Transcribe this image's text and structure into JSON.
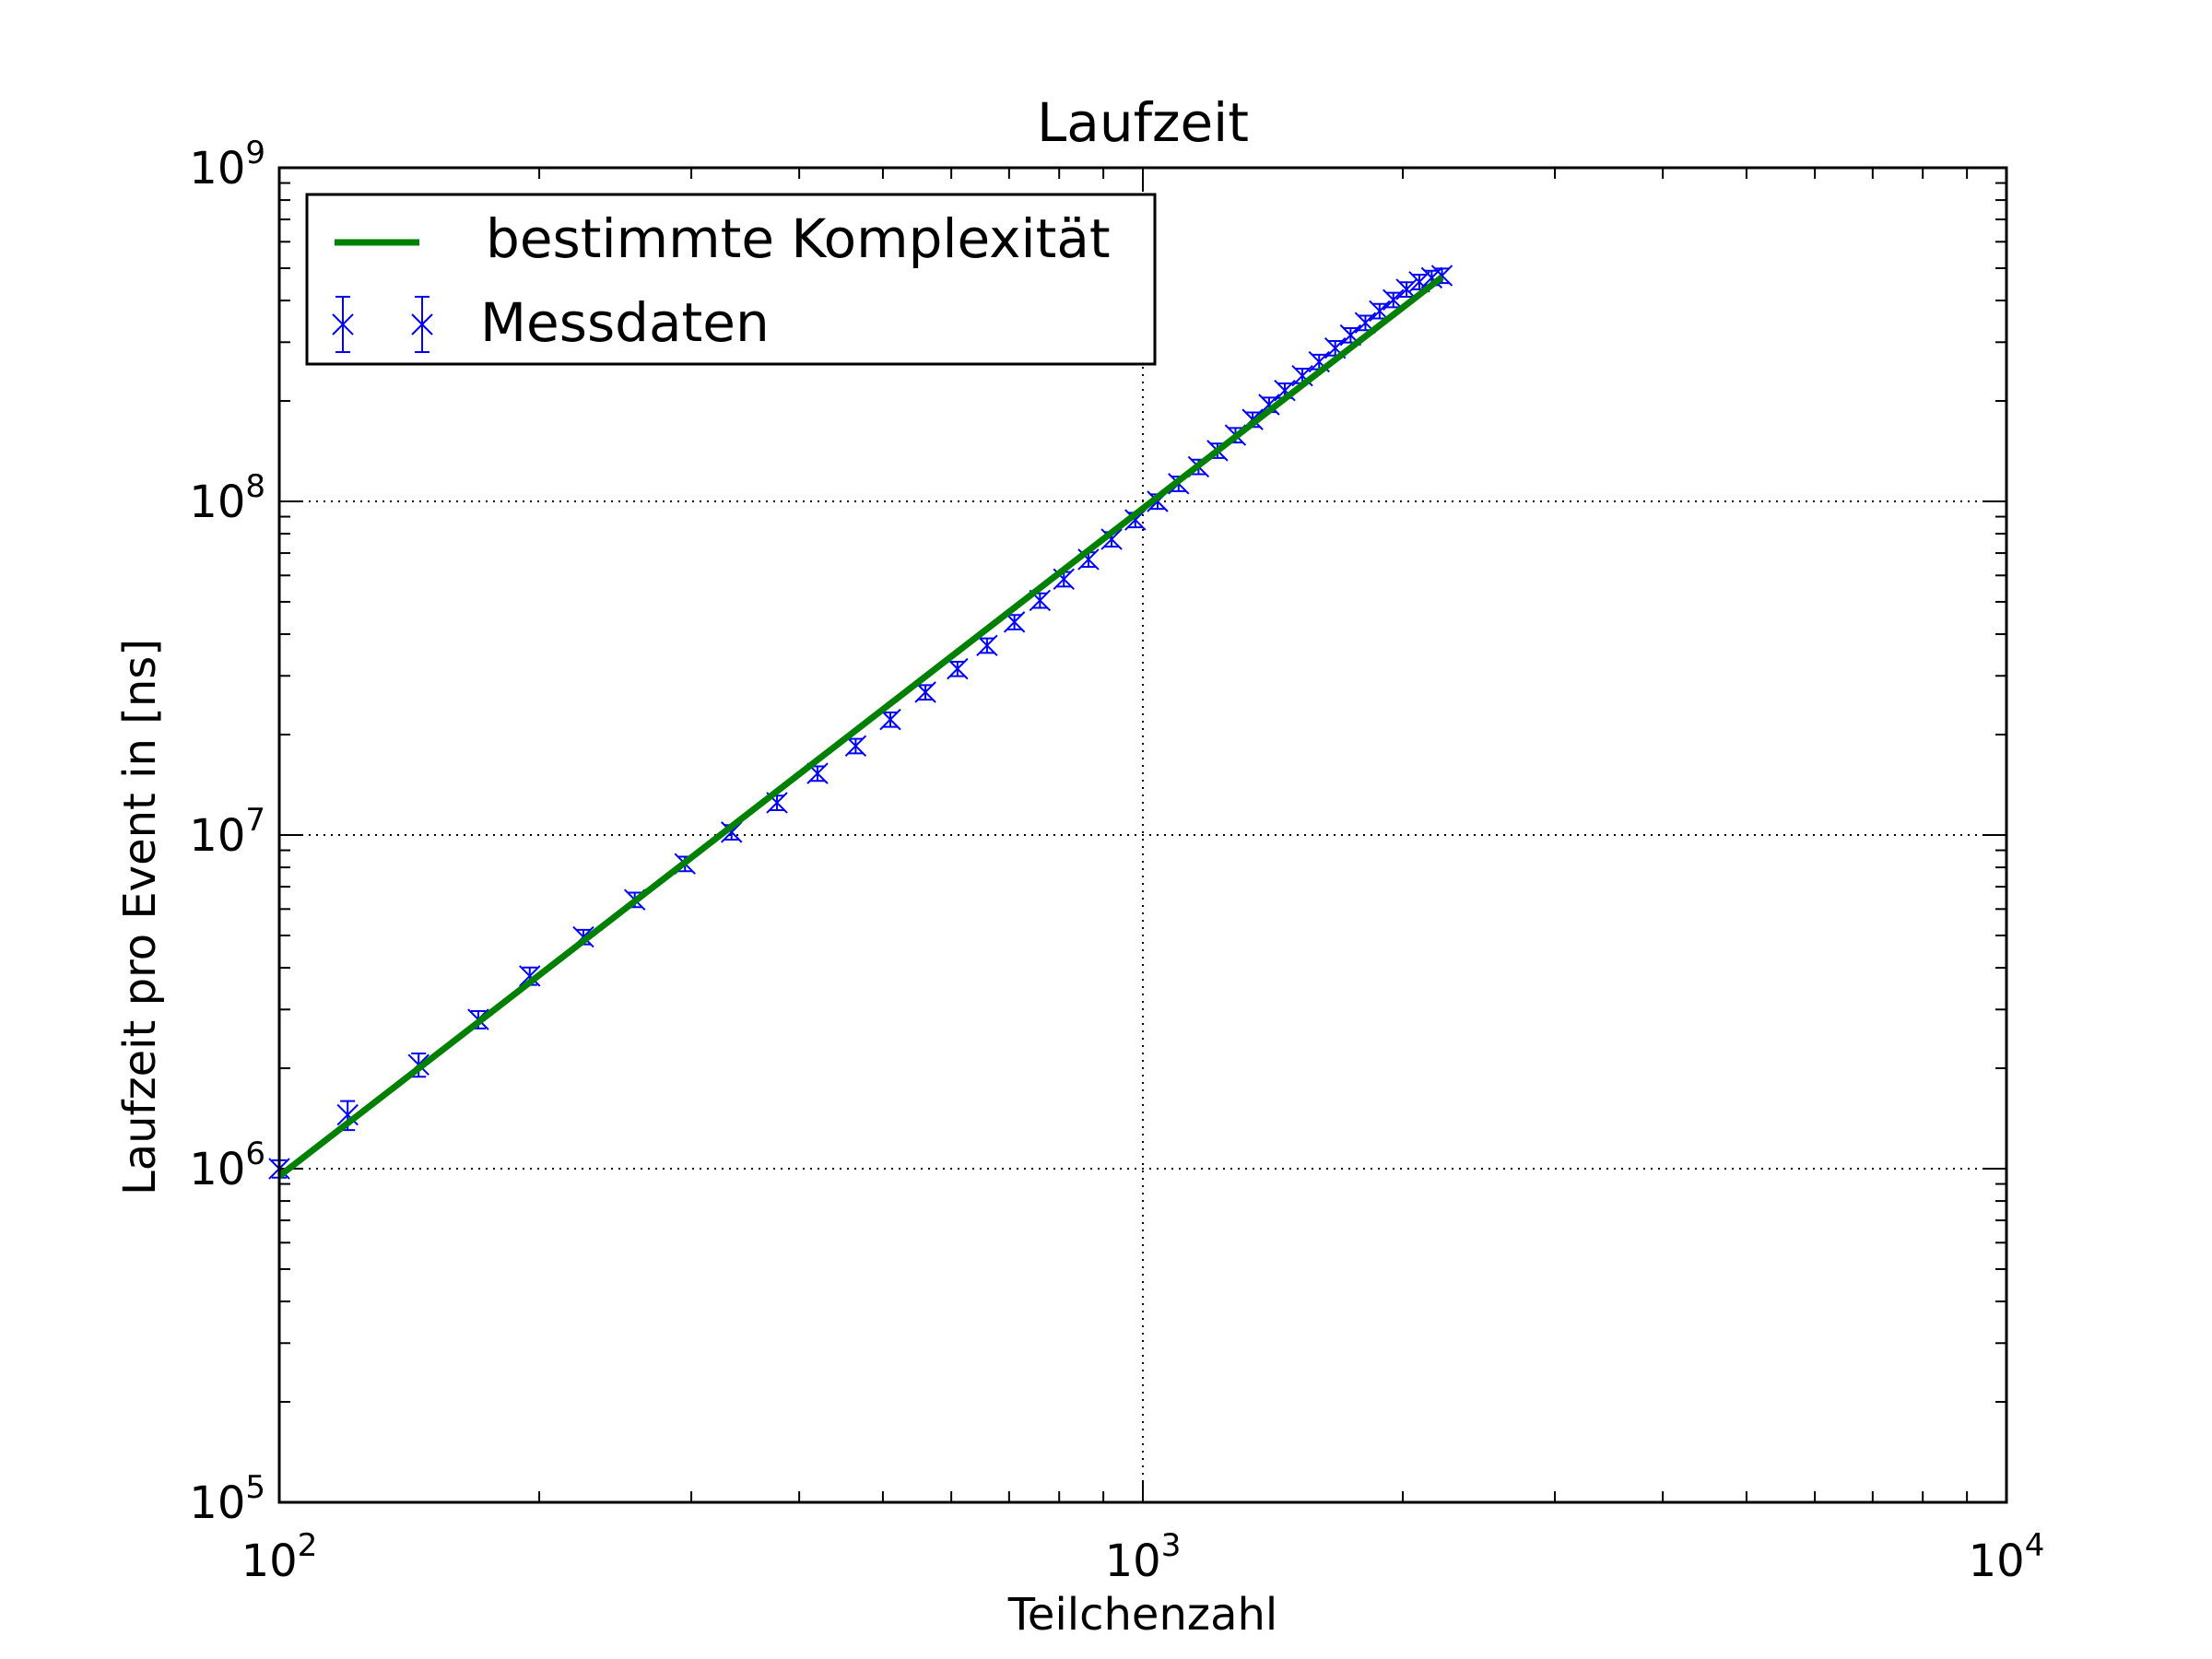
{
  "chart_data": {
    "type": "line",
    "title": "Laufzeit",
    "xlabel": "Teilchenzahl",
    "ylabel": "Laufzeit pro Event in [ns]",
    "x_scale": "log",
    "y_scale": "log",
    "xlim": [
      100,
      10000
    ],
    "ylim": [
      100000,
      1000000000
    ],
    "x_ticks": [
      {
        "value": 100,
        "base": "10",
        "exp": "2"
      },
      {
        "value": 1000,
        "base": "10",
        "exp": "3"
      },
      {
        "value": 10000,
        "base": "10",
        "exp": "4"
      }
    ],
    "y_ticks": [
      {
        "value": 100000,
        "base": "10",
        "exp": "5"
      },
      {
        "value": 1000000,
        "base": "10",
        "exp": "6"
      },
      {
        "value": 10000000,
        "base": "10",
        "exp": "7"
      },
      {
        "value": 100000000,
        "base": "10",
        "exp": "8"
      },
      {
        "value": 1000000000,
        "base": "10",
        "exp": "9"
      }
    ],
    "grid": true,
    "legend_position": "top-left",
    "series": [
      {
        "name": "bestimmte Komplexität",
        "kind": "line",
        "color": "#008000",
        "x": [
          100,
          2220
        ],
        "y": [
          950000,
          470000000
        ]
      },
      {
        "name": "Messdaten",
        "kind": "errorbar",
        "marker": "x",
        "color": "#0000ff",
        "x": [
          100,
          120,
          145,
          170,
          195,
          225,
          258,
          295,
          334,
          377,
          420,
          465,
          510,
          560,
          610,
          660,
          710,
          760,
          810,
          865,
          920,
          980,
          1040,
          1100,
          1160,
          1220,
          1280,
          1340,
          1400,
          1460,
          1530,
          1600,
          1670,
          1740,
          1810,
          1880,
          1950,
          2020,
          2090,
          2160,
          2220
        ],
        "y": [
          1000000,
          1450000,
          2050000,
          2800000,
          3780000,
          4950000,
          6400000,
          8200000,
          10200000,
          12500000,
          15300000,
          18500000,
          22200000,
          26800000,
          31500000,
          37000000,
          43500000,
          50500000,
          58500000,
          67000000,
          77000000,
          88000000,
          100000000,
          113000000,
          127000000,
          142000000,
          158000000,
          176000000,
          195000000,
          215000000,
          238000000,
          262000000,
          288000000,
          315000000,
          343000000,
          372000000,
          402000000,
          432000000,
          455000000,
          468000000,
          475000000
        ],
        "err_rel": [
          0.06,
          0.1,
          0.08,
          0.06,
          0.06,
          0.05,
          0.05,
          0.05,
          0.05,
          0.05,
          0.05,
          0.05,
          0.05,
          0.05,
          0.05,
          0.05,
          0.05,
          0.05,
          0.05,
          0.05,
          0.05,
          0.05,
          0.05,
          0.05,
          0.05,
          0.05,
          0.05,
          0.05,
          0.05,
          0.05,
          0.05,
          0.05,
          0.05,
          0.05,
          0.05,
          0.05,
          0.05,
          0.05,
          0.05,
          0.05,
          0.05
        ]
      }
    ]
  }
}
